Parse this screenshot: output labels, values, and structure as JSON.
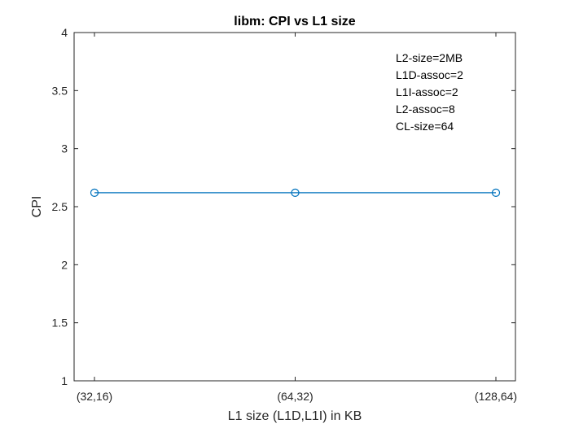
{
  "chart_data": {
    "type": "line",
    "title": "libm: CPI vs L1 size",
    "xlabel": "L1 size (L1D,L1I) in KB",
    "ylabel": "CPI",
    "categories": [
      "(32,16)",
      "(64,32)",
      "(128,64)"
    ],
    "series": [
      {
        "values": [
          2.62,
          2.62,
          2.62
        ],
        "color": "#0072bd",
        "marker": "circle"
      }
    ],
    "ylim": [
      1,
      4
    ],
    "yticks": [
      "1",
      "1.5",
      "2",
      "2.5",
      "3",
      "3.5",
      "4"
    ],
    "grid": false,
    "annotations": [
      "L2-size=2MB",
      "L1D-assoc=2",
      "L1I-assoc=2",
      "L2-assoc=8",
      "CL-size=64"
    ]
  }
}
